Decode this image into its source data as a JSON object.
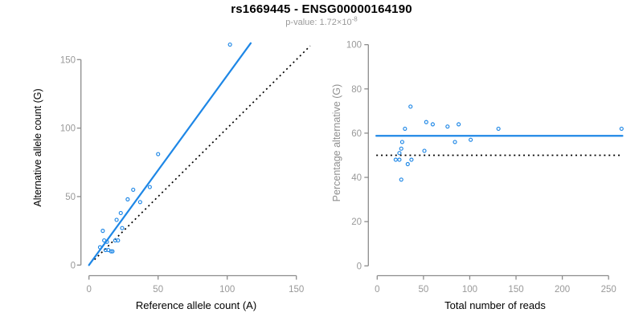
{
  "header": {
    "title": "rs1669445 - ENSG00000164190",
    "pvalue_base": "p-value: 1.72×10",
    "pvalue_exponent": "-8"
  },
  "colors": {
    "accent_blue": "#1e87e6",
    "axis_line": "#8c8c8c",
    "tick_label": "#999999",
    "title_text": "#000000",
    "subtitle_text": "#9a9a9a",
    "reference_line": "#000000"
  },
  "chart_data": [
    {
      "type": "scatter",
      "panel": "left",
      "xlabel": "Reference allele count (A)",
      "ylabel": "Alternative allele count (G)",
      "xlabel_color": "#000000",
      "ylabel_color": "#000000",
      "xticks": [
        0,
        50,
        100,
        150
      ],
      "yticks": [
        0,
        50,
        100,
        150
      ],
      "xlim": [
        0,
        160
      ],
      "ylim": [
        0,
        165
      ],
      "grid": false,
      "legend": "none",
      "points": [
        [
          102,
          161
        ],
        [
          50,
          81
        ],
        [
          44,
          57
        ],
        [
          32,
          55
        ],
        [
          37,
          46
        ],
        [
          28,
          48
        ],
        [
          23,
          38
        ],
        [
          20,
          33
        ],
        [
          24,
          27
        ],
        [
          10,
          25
        ],
        [
          11,
          18
        ],
        [
          13,
          17
        ],
        [
          19,
          18
        ],
        [
          21,
          18
        ],
        [
          8,
          13
        ],
        [
          12,
          11
        ],
        [
          14,
          11
        ],
        [
          16,
          10
        ],
        [
          17,
          10
        ]
      ],
      "fit_line": {
        "x1": 0,
        "y1": 0,
        "x2": 117,
        "y2": 162,
        "color": "#1e87e6",
        "style": "solid",
        "meaning": "regression fit"
      },
      "reference_line": {
        "x1": 4,
        "y1": 4,
        "x2": 160,
        "y2": 160,
        "color": "#000000",
        "style": "dotted",
        "meaning": "identity y = x"
      }
    },
    {
      "type": "scatter",
      "panel": "right",
      "xlabel": "Total number of reads",
      "ylabel": "Percentage alternative (G)",
      "xlabel_color": "#000000",
      "ylabel_color": "#8f8f8f",
      "xticks": [
        0,
        50,
        100,
        150,
        200,
        250
      ],
      "yticks": [
        0,
        20,
        40,
        60,
        80,
        100
      ],
      "xlim": [
        0,
        265
      ],
      "ylim": [
        0,
        100
      ],
      "grid": false,
      "legend": "none",
      "points": [
        [
          36,
          72
        ],
        [
          30,
          62
        ],
        [
          53,
          65
        ],
        [
          60,
          64
        ],
        [
          76,
          63
        ],
        [
          88,
          64
        ],
        [
          131,
          62
        ],
        [
          264,
          62
        ],
        [
          27,
          56
        ],
        [
          84,
          56
        ],
        [
          101,
          57
        ],
        [
          26,
          53
        ],
        [
          51,
          52
        ],
        [
          24,
          51
        ],
        [
          20,
          48
        ],
        [
          24,
          48
        ],
        [
          33,
          46
        ],
        [
          37,
          48
        ],
        [
          26,
          39
        ]
      ],
      "fit_line": {
        "x1": -1,
        "y1": 58.8,
        "x2": 265,
        "y2": 58.8,
        "color": "#1e87e6",
        "style": "solid",
        "meaning": "mean percentage alternative"
      },
      "reference_line": {
        "x1": -1,
        "y1": 50,
        "x2": 265,
        "y2": 50,
        "color": "#000000",
        "style": "dotted",
        "meaning": "null expectation 50%"
      }
    }
  ]
}
